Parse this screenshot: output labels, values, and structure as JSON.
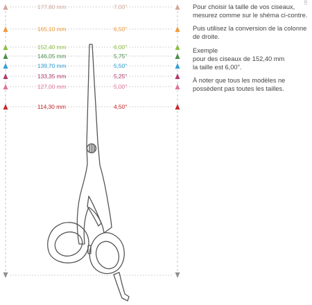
{
  "colors": {
    "line": "#c4c4c4",
    "scissors": "#555555",
    "bottom_marker": "#8f8f8f"
  },
  "size_rows": [
    {
      "mm": "177,80 mm",
      "inch": "7,00\"",
      "color": "#d2a89a"
    },
    {
      "mm": "165,10 mm",
      "inch": "6,50\"",
      "color": "#ef9a3b"
    },
    {
      "mm": "152,40 mm",
      "inch": "6,00\"",
      "color": "#8cc043"
    },
    {
      "mm": "146,05 mm",
      "inch": "5,75\"",
      "color": "#4a8f4c"
    },
    {
      "mm": "139,70 mm",
      "inch": "5,50\"",
      "color": "#2f9ed6"
    },
    {
      "mm": "133,35 mm",
      "inch": "5,25\"",
      "color": "#b1396b"
    },
    {
      "mm": "127,00 mm",
      "inch": "5,00\"",
      "color": "#e0749a"
    },
    {
      "mm": "114,30 mm",
      "inch": "4,50\"",
      "color": "#c8282c"
    }
  ],
  "instructions": {
    "p1": [
      "Pour choisir la taille de vos ciseaux,",
      "mesurez comme sur le shéma ci-contre."
    ],
    "p2": [
      "Puis utilisez la conversion de la colonne",
      "de droite."
    ],
    "p3": [
      "Exemple",
      "pour des ciseaux de 152,40 mm",
      "la taille est 6,00\"."
    ],
    "p4": [
      "À noter que tous les modèles ne",
      "possèdent pas toutes les tailles."
    ]
  },
  "corner_mark": "⠿"
}
